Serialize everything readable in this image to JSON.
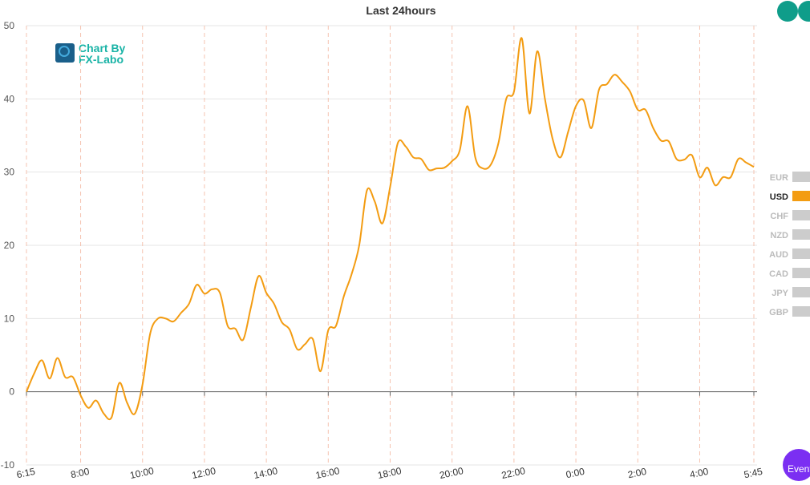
{
  "chart_data": {
    "type": "line",
    "title": "Last 24hours",
    "watermark": [
      "Chart By",
      "FX-Labo"
    ],
    "categories": [
      "6:15",
      null,
      null,
      null,
      null,
      null,
      null,
      "8:00",
      null,
      null,
      null,
      null,
      null,
      null,
      null,
      "10:00",
      null,
      null,
      null,
      null,
      null,
      null,
      null,
      "12:00",
      null,
      null,
      null,
      null,
      null,
      null,
      null,
      "14:00",
      null,
      null,
      null,
      null,
      null,
      null,
      null,
      "16:00",
      null,
      null,
      null,
      null,
      null,
      null,
      null,
      "18:00",
      null,
      null,
      null,
      null,
      null,
      null,
      null,
      "20:00",
      null,
      null,
      null,
      null,
      null,
      null,
      null,
      "22:00",
      null,
      null,
      null,
      null,
      null,
      null,
      null,
      "0:00",
      null,
      null,
      null,
      null,
      null,
      null,
      null,
      "2:00",
      null,
      null,
      null,
      null,
      null,
      null,
      null,
      "4:00",
      null,
      null,
      null,
      null,
      null,
      null,
      "5:45"
    ],
    "series": [
      {
        "name": "USD",
        "color": "#f39c12",
        "values": [
          0,
          2.5,
          4.3,
          1.8,
          4.6,
          2.0,
          2.0,
          -0.5,
          -2.2,
          -1.2,
          -3,
          -3.5,
          1.2,
          -1.5,
          -3,
          1,
          8,
          10,
          10,
          9.6,
          10.8,
          12,
          14.6,
          13.4,
          14,
          13.5,
          9,
          8.6,
          7.1,
          11.5,
          15.8,
          13.5,
          12,
          9.5,
          8.5,
          5.8,
          6.5,
          7.2,
          2.8,
          8.4,
          9,
          13,
          16,
          20,
          27.5,
          26,
          23,
          28,
          34,
          33.5,
          32,
          31.8,
          30.3,
          30.5,
          30.6,
          31.5,
          33,
          39,
          32,
          30.5,
          31,
          34,
          40,
          41,
          48.3,
          38,
          46.5,
          40,
          34.5,
          32,
          35.5,
          39,
          39.8,
          36,
          41.3,
          42,
          43.3,
          42.3,
          41,
          38.5,
          38.5,
          36,
          34.3,
          34.2,
          31.8,
          31.7,
          32.3,
          29.3,
          30.6,
          28.2,
          29.3,
          29.3,
          31.8,
          31.3,
          30.7
        ]
      }
    ],
    "legend_items": [
      {
        "name": "EUR",
        "color": "#cccccc"
      },
      {
        "name": "USD",
        "color": "#f39c12"
      },
      {
        "name": "CHF",
        "color": "#cccccc"
      },
      {
        "name": "NZD",
        "color": "#cccccc"
      },
      {
        "name": "AUD",
        "color": "#cccccc"
      },
      {
        "name": "CAD",
        "color": "#cccccc"
      },
      {
        "name": "JPY",
        "color": "#cccccc"
      },
      {
        "name": "GBP",
        "color": "#cccccc"
      }
    ],
    "ylim": [
      -10,
      50
    ],
    "yticks": [
      -10,
      0,
      10,
      20,
      30,
      40,
      50
    ],
    "grid": true,
    "event_button": "Event"
  }
}
